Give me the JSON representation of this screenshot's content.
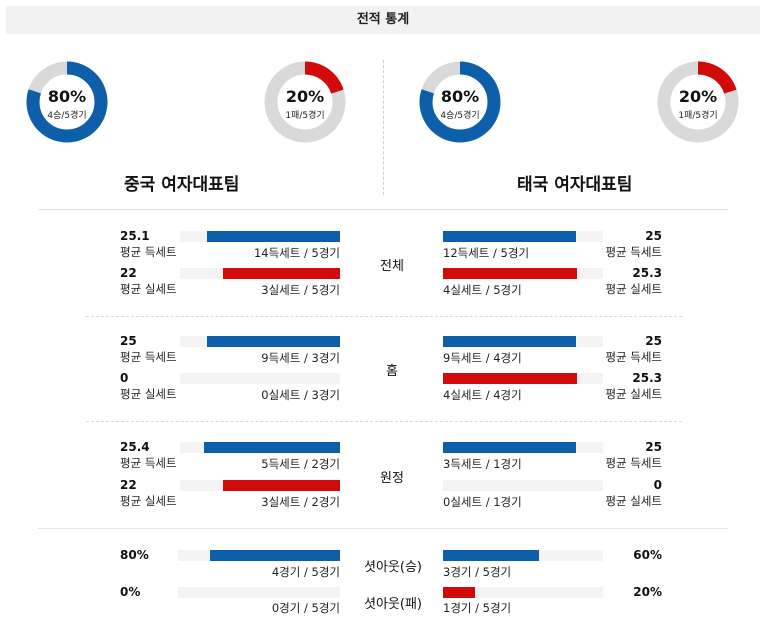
{
  "header": {
    "title": "전적 통계"
  },
  "colors": {
    "blue": "#0c5fa8",
    "red": "#d10a0a",
    "track": "#f3f3f3",
    "donut_bg": "#d9d9d9"
  },
  "donuts": {
    "left_win": {
      "pct": "80%",
      "sub": "4승/5경기",
      "value": 80,
      "color": "#0c5fa8"
    },
    "left_loss": {
      "pct": "20%",
      "sub": "1패/5경기",
      "value": 20,
      "color": "#d10a0a"
    },
    "right_win": {
      "pct": "80%",
      "sub": "4승/5경기",
      "value": 80,
      "color": "#0c5fa8"
    },
    "right_loss": {
      "pct": "20%",
      "sub": "1패/5경기",
      "value": 20,
      "color": "#d10a0a"
    }
  },
  "teams": {
    "left": "중국 여자대표팀",
    "right": "태국 여자대표팀"
  },
  "sections": [
    {
      "name": "전체",
      "left": {
        "score_val": "25.1",
        "score_lbl": "평균 득세트",
        "score_sub": "14득세트 / 5경기",
        "score_fill": 0.83,
        "lost_val": "22",
        "lost_lbl": "평균 실세트",
        "lost_sub": "3실세트 / 5경기",
        "lost_fill": 0.73
      },
      "right": {
        "score_val": "25",
        "score_lbl": "평균 득세트",
        "score_sub": "12득세트 / 5경기",
        "score_fill": 0.83,
        "lost_val": "25.3",
        "lost_lbl": "평균 실세트",
        "lost_sub": "4실세트 / 5경기",
        "lost_fill": 0.84
      }
    },
    {
      "name": "홈",
      "left": {
        "score_val": "25",
        "score_lbl": "평균 득세트",
        "score_sub": "9득세트 / 3경기",
        "score_fill": 0.83,
        "lost_val": "0",
        "lost_lbl": "평균 실세트",
        "lost_sub": "0실세트 / 3경기",
        "lost_fill": 0
      },
      "right": {
        "score_val": "25",
        "score_lbl": "평균 득세트",
        "score_sub": "9득세트 / 4경기",
        "score_fill": 0.83,
        "lost_val": "25.3",
        "lost_lbl": "평균 실세트",
        "lost_sub": "4실세트 / 4경기",
        "lost_fill": 0.84
      }
    },
    {
      "name": "원정",
      "left": {
        "score_val": "25.4",
        "score_lbl": "평균 득세트",
        "score_sub": "5득세트 / 2경기",
        "score_fill": 0.85,
        "lost_val": "22",
        "lost_lbl": "평균 실세트",
        "lost_sub": "3실세트 / 2경기",
        "lost_fill": 0.73
      },
      "right": {
        "score_val": "25",
        "score_lbl": "평균 득세트",
        "score_sub": "3득세트 / 1경기",
        "score_fill": 0.83,
        "lost_val": "0",
        "lost_lbl": "평균 실세트",
        "lost_sub": "0실세트 / 1경기",
        "lost_fill": 0
      }
    }
  ],
  "shutout": {
    "win": {
      "name": "셧아웃(승)",
      "left_val": "80%",
      "left_sub": "4경기 / 5경기",
      "left_fill": 0.8,
      "right_val": "60%",
      "right_sub": "3경기 / 5경기",
      "right_fill": 0.6
    },
    "loss": {
      "name": "셧아웃(패)",
      "left_val": "0%",
      "left_sub": "0경기 / 5경기",
      "left_fill": 0,
      "right_val": "20%",
      "right_sub": "1경기 / 5경기",
      "right_fill": 0.2
    }
  }
}
